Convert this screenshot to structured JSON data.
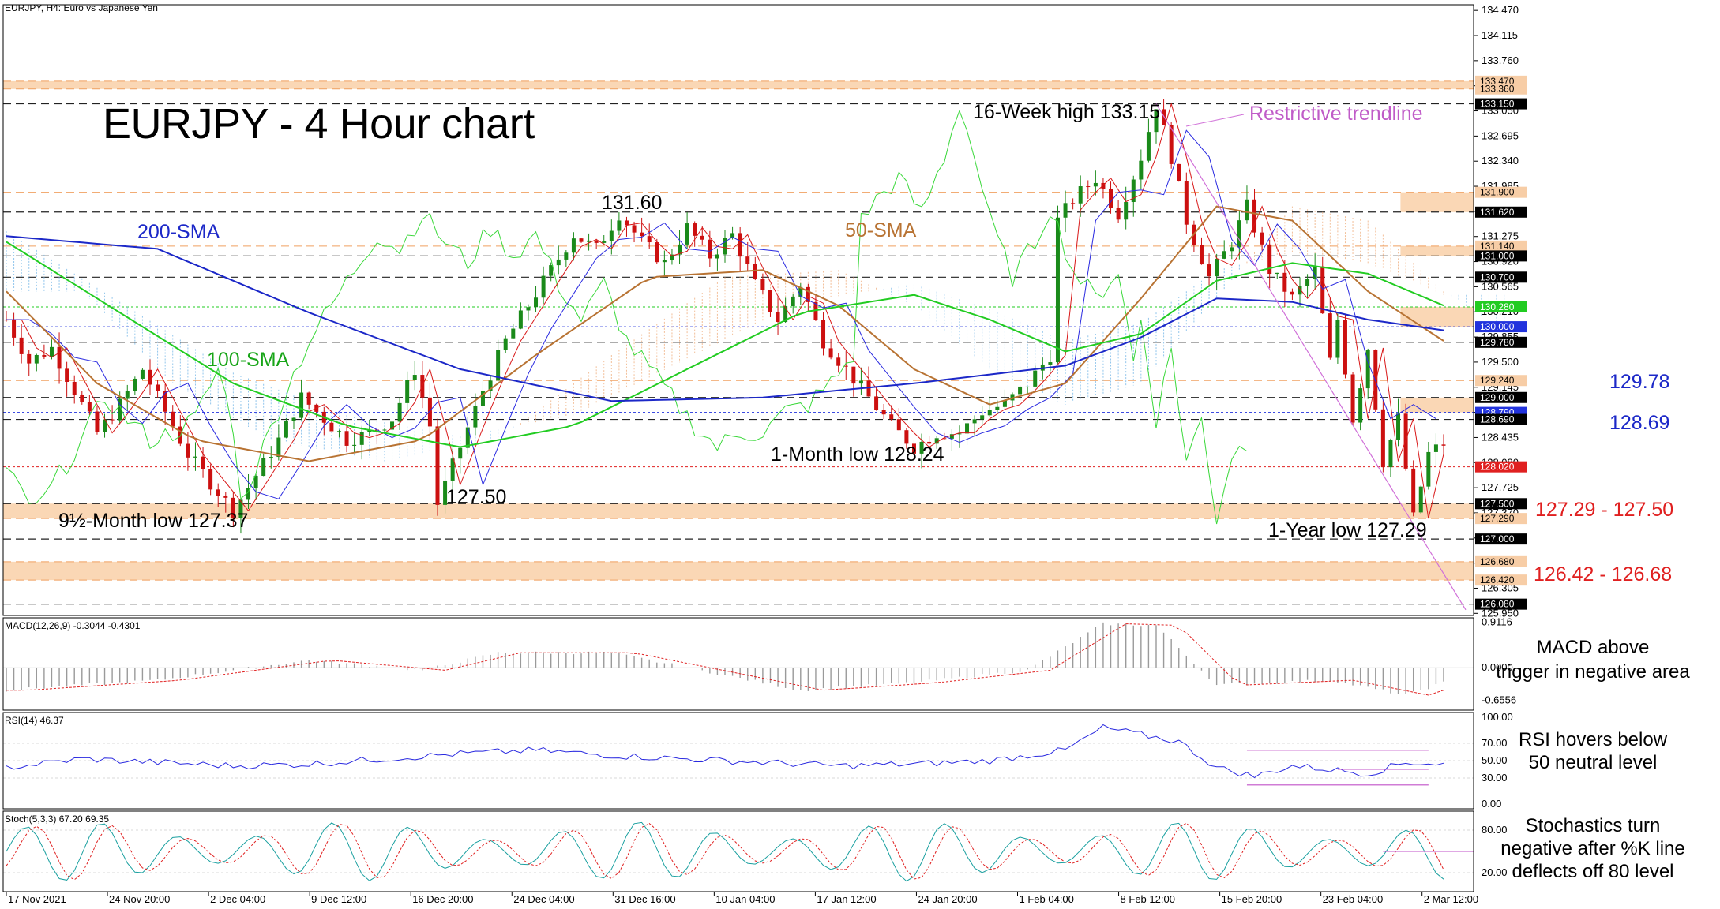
{
  "header": {
    "symbol_line": "EURJPY, H4:  Euro vs Japanese Yen",
    "title": "EURJPY - 4 Hour chart"
  },
  "chart_data": {
    "type": "candlestick",
    "symbol": "EURJPY",
    "timeframe": "H4",
    "price_axis": {
      "ylim": [
        125.92,
        134.55
      ],
      "ticks": [
        "134.470",
        "134.115",
        "133.760",
        "133.405",
        "133.050",
        "132.695",
        "132.340",
        "131.985",
        "131.630",
        "131.275",
        "130.920",
        "130.565",
        "130.210",
        "129.855",
        "129.500",
        "129.145",
        "128.790",
        "128.435",
        "128.080",
        "127.725",
        "127.370",
        "127.015",
        "126.660",
        "126.305",
        "125.950"
      ],
      "tagged_levels": [
        {
          "label": "133.470",
          "value": 133.47,
          "style": "tan"
        },
        {
          "label": "133.360",
          "value": 133.36,
          "style": "tan"
        },
        {
          "label": "133.150",
          "value": 133.15,
          "style": "black"
        },
        {
          "label": "131.900",
          "value": 131.9,
          "style": "tan"
        },
        {
          "label": "131.620",
          "value": 131.62,
          "style": "black"
        },
        {
          "label": "131.140",
          "value": 131.14,
          "style": "tan"
        },
        {
          "label": "131.000",
          "value": 131.0,
          "style": "black"
        },
        {
          "label": "130.700",
          "value": 130.7,
          "style": "black"
        },
        {
          "label": "130.280",
          "value": 130.28,
          "style": "green"
        },
        {
          "label": "130.000",
          "value": 130.0,
          "style": "blue"
        },
        {
          "label": "129.780",
          "value": 129.78,
          "style": "black"
        },
        {
          "label": "129.240",
          "value": 129.24,
          "style": "tan"
        },
        {
          "label": "129.000",
          "value": 129.0,
          "style": "black"
        },
        {
          "label": "128.790",
          "value": 128.79,
          "style": "blue"
        },
        {
          "label": "128.690",
          "value": 128.69,
          "style": "black"
        },
        {
          "label": "128.020",
          "value": 128.02,
          "style": "red"
        },
        {
          "label": "127.500",
          "value": 127.5,
          "style": "black"
        },
        {
          "label": "127.290",
          "value": 127.29,
          "style": "tan"
        },
        {
          "label": "127.000",
          "value": 127.0,
          "style": "black"
        },
        {
          "label": "126.680",
          "value": 126.68,
          "style": "tan"
        },
        {
          "label": "126.420",
          "value": 126.42,
          "style": "tan"
        },
        {
          "label": "126.080",
          "value": 126.08,
          "style": "black"
        }
      ],
      "zones": [
        {
          "from": 133.36,
          "to": 133.47
        },
        {
          "from": 131.62,
          "to": 131.9,
          "start_bar": 0.97
        },
        {
          "from": 131.0,
          "to": 131.14,
          "start_bar": 0.97
        },
        {
          "from": 130.0,
          "to": 130.28,
          "start_bar": 0.97
        },
        {
          "from": 128.79,
          "to": 129.0,
          "start_bar": 0.97
        },
        {
          "from": 127.29,
          "to": 127.5
        },
        {
          "from": 126.42,
          "to": 126.68
        }
      ]
    },
    "x_axis": {
      "labels": [
        "17 Nov 2021",
        "24 Nov 20:00",
        "2 Dec 04:00",
        "9 Dec 12:00",
        "16 Dec 20:00",
        "24 Dec 04:00",
        "31 Dec 16:00",
        "10 Jan 04:00",
        "17 Jan 12:00",
        "24 Jan 20:00",
        "1 Feb 04:00",
        "8 Feb 12:00",
        "15 Feb 20:00",
        "23 Feb 04:00",
        "2 Mar 12:00"
      ]
    },
    "price_path": [
      [
        0,
        130.1
      ],
      [
        3,
        129.5
      ],
      [
        6,
        129.7
      ],
      [
        9,
        129.1
      ],
      [
        12,
        128.5
      ],
      [
        15,
        128.9
      ],
      [
        18,
        129.4
      ],
      [
        21,
        128.8
      ],
      [
        24,
        128.2
      ],
      [
        27,
        127.8
      ],
      [
        30,
        127.4
      ],
      [
        33,
        127.9
      ],
      [
        36,
        128.4
      ],
      [
        39,
        129.0
      ],
      [
        42,
        128.7
      ],
      [
        45,
        128.4
      ],
      [
        48,
        128.5
      ],
      [
        51,
        128.7
      ],
      [
        54,
        129.4
      ],
      [
        56,
        128.6
      ],
      [
        57,
        127.5
      ],
      [
        60,
        128.3
      ],
      [
        63,
        129.1
      ],
      [
        66,
        129.8
      ],
      [
        69,
        130.3
      ],
      [
        72,
        130.8
      ],
      [
        75,
        131.3
      ],
      [
        78,
        131.1
      ],
      [
        81,
        131.6
      ],
      [
        84,
        131.2
      ],
      [
        87,
        130.9
      ],
      [
        90,
        131.4
      ],
      [
        93,
        131.0
      ],
      [
        96,
        131.3
      ],
      [
        99,
        130.6
      ],
      [
        102,
        130.1
      ],
      [
        105,
        130.6
      ],
      [
        108,
        129.8
      ],
      [
        111,
        129.4
      ],
      [
        114,
        129.0
      ],
      [
        117,
        128.6
      ],
      [
        120,
        128.3
      ],
      [
        123,
        128.5
      ],
      [
        126,
        128.5
      ],
      [
        129,
        128.8
      ],
      [
        132,
        128.9
      ],
      [
        135,
        129.2
      ],
      [
        138,
        129.6
      ],
      [
        139,
        131.5
      ],
      [
        141,
        131.8
      ],
      [
        144,
        132.1
      ],
      [
        147,
        131.6
      ],
      [
        150,
        132.4
      ],
      [
        152,
        133.15
      ],
      [
        154,
        132.4
      ],
      [
        156,
        131.5
      ],
      [
        159,
        130.7
      ],
      [
        162,
        131.2
      ],
      [
        164,
        131.7
      ],
      [
        167,
        130.8
      ],
      [
        170,
        130.4
      ],
      [
        173,
        130.8
      ],
      [
        175,
        129.5
      ],
      [
        176,
        130.1
      ],
      [
        178,
        128.7
      ],
      [
        180,
        129.7
      ],
      [
        182,
        128.1
      ],
      [
        184,
        128.7
      ],
      [
        186,
        127.29
      ],
      [
        188,
        128.2
      ],
      [
        190,
        128.35
      ]
    ],
    "indicators": {
      "sma_labels": {
        "sma200": "200-SMA",
        "sma100": "100-SMA",
        "sma50": "50-SMA"
      },
      "sma200": [
        [
          0,
          131.28
        ],
        [
          20,
          131.1
        ],
        [
          40,
          130.2
        ],
        [
          60,
          129.4
        ],
        [
          80,
          128.95
        ],
        [
          100,
          129.0
        ],
        [
          120,
          129.2
        ],
        [
          140,
          129.45
        ],
        [
          150,
          129.85
        ],
        [
          160,
          130.4
        ],
        [
          170,
          130.35
        ],
        [
          180,
          130.1
        ],
        [
          190,
          129.95
        ]
      ],
      "sma100": [
        [
          0,
          131.2
        ],
        [
          15,
          130.2
        ],
        [
          30,
          129.2
        ],
        [
          45,
          128.6
        ],
        [
          60,
          128.3
        ],
        [
          75,
          128.6
        ],
        [
          90,
          129.4
        ],
        [
          105,
          130.2
        ],
        [
          120,
          130.45
        ],
        [
          130,
          130.1
        ],
        [
          140,
          129.65
        ],
        [
          150,
          129.9
        ],
        [
          160,
          130.65
        ],
        [
          170,
          130.9
        ],
        [
          180,
          130.75
        ],
        [
          190,
          130.3
        ]
      ],
      "sma50": [
        [
          0,
          130.5
        ],
        [
          12,
          129.2
        ],
        [
          25,
          128.4
        ],
        [
          40,
          128.1
        ],
        [
          55,
          128.4
        ],
        [
          70,
          129.6
        ],
        [
          85,
          130.7
        ],
        [
          100,
          130.8
        ],
        [
          110,
          130.3
        ],
        [
          120,
          129.4
        ],
        [
          130,
          128.9
        ],
        [
          140,
          129.2
        ],
        [
          150,
          130.4
        ],
        [
          160,
          131.7
        ],
        [
          170,
          131.5
        ],
        [
          180,
          130.5
        ],
        [
          190,
          129.8
        ]
      ]
    },
    "annotations": [
      {
        "text": "16-Week high 133.15",
        "color": "#000000"
      },
      {
        "text": "Restrictive trendline",
        "color": "#c05cc8"
      },
      {
        "text": "131.60",
        "color": "#000000"
      },
      {
        "text": "200-SMA",
        "color": "#1c28c8"
      },
      {
        "text": "50-SMA",
        "color": "#b87333"
      },
      {
        "text": "100-SMA",
        "color": "#18a518"
      },
      {
        "text": "127.50",
        "color": "#000000"
      },
      {
        "text": "9½-Month low 127.37",
        "color": "#000000"
      },
      {
        "text": "1-Month low 128.24",
        "color": "#000000"
      },
      {
        "text": "1-Year low 127.29",
        "color": "#000000"
      },
      {
        "text": "129.78",
        "color": "#1c28c8"
      },
      {
        "text": "128.69",
        "color": "#1c28c8"
      },
      {
        "text": "127.29 - 127.50",
        "color": "#e02020"
      },
      {
        "text": "126.42 - 126.68",
        "color": "#e02020"
      }
    ],
    "panels": {
      "macd": {
        "label": "MACD(12,26,9) -0.3044 -0.4301",
        "ticks": [
          "0.9116",
          "0.0000",
          "-0.6556"
        ],
        "ylim": [
          -0.85,
          1.0
        ],
        "note_line1": "MACD above",
        "note_line2": "trigger in negative area",
        "hist": [
          [
            0,
            -0.45
          ],
          [
            20,
            -0.25
          ],
          [
            40,
            0.15
          ],
          [
            55,
            -0.05
          ],
          [
            65,
            0.3
          ],
          [
            80,
            0.3
          ],
          [
            95,
            -0.15
          ],
          [
            105,
            -0.45
          ],
          [
            120,
            -0.3
          ],
          [
            135,
            -0.05
          ],
          [
            145,
            0.88
          ],
          [
            152,
            0.85
          ],
          [
            160,
            -0.35
          ],
          [
            175,
            -0.25
          ],
          [
            185,
            -0.55
          ],
          [
            190,
            -0.3
          ]
        ]
      },
      "rsi": {
        "label": "RSI(14) 46.37",
        "ticks": [
          "100.00",
          "70.00",
          "50.00",
          "30.00",
          "0.00"
        ],
        "ylim": [
          0,
          100
        ],
        "note_line1": "RSI hovers below",
        "note_line2": "50 neutral level",
        "values": [
          [
            0,
            42
          ],
          [
            10,
            52
          ],
          [
            20,
            48
          ],
          [
            30,
            44
          ],
          [
            40,
            46
          ],
          [
            50,
            52
          ],
          [
            60,
            58
          ],
          [
            70,
            62
          ],
          [
            80,
            56
          ],
          [
            90,
            52
          ],
          [
            100,
            48
          ],
          [
            110,
            44
          ],
          [
            120,
            46
          ],
          [
            130,
            50
          ],
          [
            140,
            62
          ],
          [
            145,
            88
          ],
          [
            150,
            80
          ],
          [
            155,
            72
          ],
          [
            160,
            42
          ],
          [
            165,
            32
          ],
          [
            170,
            44
          ],
          [
            175,
            40
          ],
          [
            180,
            35
          ],
          [
            185,
            48
          ],
          [
            190,
            46
          ]
        ]
      },
      "stoch": {
        "label": "Stoch(5,3,3) 67.20 69.35",
        "ticks": [
          "80.00",
          "20.00"
        ],
        "ylim": [
          0,
          100
        ],
        "note_line1": "Stochastics turn",
        "note_line2": "negative after %K line",
        "note_line3": "deflects off 80 level"
      }
    }
  }
}
